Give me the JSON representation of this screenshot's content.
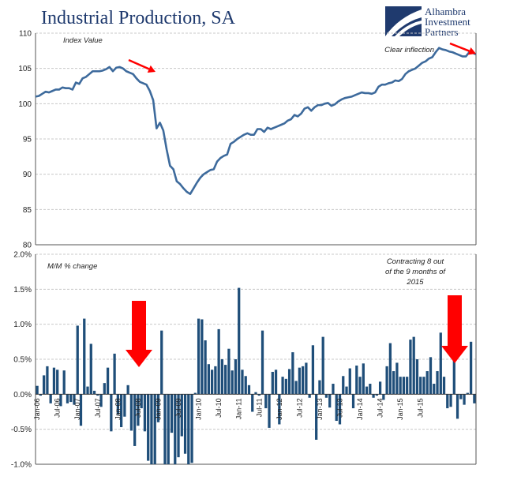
{
  "header": {
    "title": "Industrial Production, SA",
    "logo_lines": [
      "Alhambra",
      "Investment",
      "Partners"
    ]
  },
  "colors": {
    "line": "#3d6a9c",
    "bar": "#1f4e79",
    "arrow": "#ff0000",
    "title": "#1f3a6e"
  },
  "chart_data": [
    {
      "type": "line",
      "ylabel": "",
      "xlabel": "",
      "ylim": [
        80,
        110
      ],
      "yticks": [
        80,
        85,
        90,
        95,
        100,
        105,
        110
      ],
      "grid": true,
      "annotations": [
        "Index Value",
        "Clear inflection"
      ],
      "start": "Jan-06",
      "frequency": "monthly",
      "values": [
        101.0,
        101.1,
        101.4,
        101.7,
        101.6,
        101.8,
        102.0,
        102.0,
        102.3,
        102.2,
        102.2,
        102.0,
        103.0,
        102.8,
        103.6,
        103.8,
        104.2,
        104.6,
        104.6,
        104.6,
        104.7,
        104.9,
        105.2,
        104.6,
        105.1,
        105.2,
        105.0,
        104.6,
        104.4,
        104.2,
        103.6,
        103.1,
        102.9,
        102.7,
        101.8,
        100.5,
        96.5,
        97.3,
        96.2,
        93.5,
        91.2,
        90.7,
        89.0,
        88.6,
        88.0,
        87.5,
        87.2,
        88.0,
        88.8,
        89.5,
        90.0,
        90.3,
        90.6,
        90.7,
        91.8,
        92.3,
        92.6,
        92.8,
        94.3,
        94.6,
        95.0,
        95.3,
        95.6,
        95.8,
        95.6,
        95.6,
        96.4,
        96.4,
        96.0,
        96.6,
        96.4,
        96.6,
        96.8,
        97.0,
        97.2,
        97.6,
        97.8,
        98.4,
        98.2,
        98.6,
        99.3,
        99.5,
        99.0,
        99.5,
        99.8,
        99.8,
        100.0,
        100.1,
        99.7,
        99.9,
        100.3,
        100.6,
        100.8,
        100.9,
        101.0,
        101.2,
        101.4,
        101.6,
        101.5,
        101.5,
        101.4,
        101.6,
        102.4,
        102.7,
        102.7,
        102.9,
        103.0,
        103.3,
        103.2,
        103.5,
        104.2,
        104.6,
        104.8,
        105.0,
        105.4,
        105.8,
        106.0,
        106.4,
        106.6,
        107.3,
        107.9,
        107.7,
        107.6,
        107.4,
        107.3,
        107.1,
        106.9,
        106.7,
        106.7,
        107.3,
        107.2,
        107.0
      ]
    },
    {
      "type": "bar",
      "ylabel": "",
      "ylim": [
        -1.0,
        2.0
      ],
      "yticks": [
        "-1.0%",
        "-0.5%",
        "0.0%",
        "0.5%",
        "1.0%",
        "1.5%",
        "2.0%"
      ],
      "grid": true,
      "annotations": [
        "M/M % change",
        "Contracting 8 out",
        "of the 9 months of",
        "2015"
      ],
      "xticks": [
        "Jan-06",
        "Jul-06",
        "Jan-07",
        "Jul-07",
        "Jan-08",
        "Jul-08",
        "Jan-09",
        "Jul-09",
        "Jan-10",
        "Jul-10",
        "Jan-11",
        "Jul-11",
        "Jan-12",
        "Jul-12",
        "Jan-13",
        "Jul-13",
        "Jan-14",
        "Jul-14",
        "Jan-15",
        "Jul-15"
      ],
      "values": [
        0.12,
        -0.02,
        0.27,
        0.4,
        -0.13,
        0.38,
        0.35,
        -0.17,
        0.34,
        -0.13,
        -0.11,
        -0.15,
        0.98,
        -0.45,
        1.08,
        0.11,
        0.72,
        0.05,
        -0.02,
        -0.18,
        0.16,
        0.38,
        -0.53,
        0.58,
        -0.29,
        -0.47,
        -0.32,
        0.13,
        -0.52,
        -0.74,
        -0.45,
        -0.2,
        -0.53,
        -0.95,
        -1.0,
        -1.0,
        -0.4,
        0.91,
        -1.0,
        -1.0,
        -0.55,
        -1.0,
        -0.9,
        -0.6,
        -0.85,
        -1.0,
        -0.98,
        0.02,
        1.08,
        1.07,
        0.77,
        0.43,
        0.35,
        0.4,
        0.93,
        0.5,
        0.42,
        0.65,
        0.34,
        0.5,
        1.52,
        0.35,
        0.26,
        0.13,
        -0.25,
        0.03,
        -0.02,
        0.91,
        -0.2,
        -0.48,
        0.32,
        0.35,
        -0.43,
        0.25,
        0.22,
        0.36,
        0.6,
        0.19,
        0.38,
        0.4,
        0.45,
        -0.05,
        0.7,
        -0.65,
        0.2,
        0.82,
        -0.05,
        -0.19,
        0.15,
        -0.38,
        -0.43,
        0.26,
        0.11,
        0.37,
        -0.2,
        0.41,
        0.25,
        0.44,
        0.11,
        0.15,
        -0.05,
        -0.02,
        0.18,
        -0.08,
        0.4,
        0.73,
        0.33,
        0.45,
        0.25,
        0.25,
        0.25,
        0.78,
        0.82,
        0.5,
        0.25,
        0.25,
        0.33,
        0.53,
        0.15,
        0.33,
        0.88,
        0.25,
        -0.2,
        -0.18,
        0.65,
        -0.35,
        -0.07,
        -0.15,
        0.02,
        0.75,
        -0.13
      ]
    }
  ]
}
